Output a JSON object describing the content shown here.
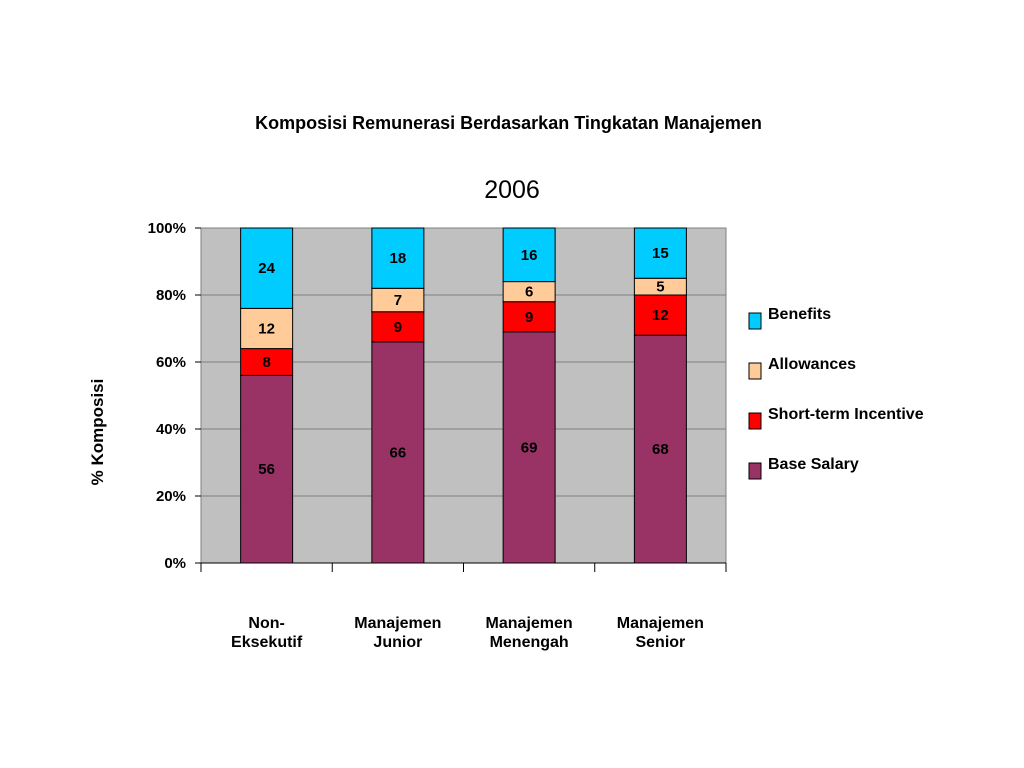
{
  "chart_data": {
    "type": "bar",
    "stacked": true,
    "percent_stacked": true,
    "title": "Komposisi Remunerasi Berdasarkan Tingkatan Manajemen",
    "subtitle": "2006",
    "ylabel": "% Komposisi",
    "xlabel": "",
    "ylim": [
      0,
      100
    ],
    "yticks": [
      "0%",
      "20%",
      "40%",
      "60%",
      "80%",
      "100%"
    ],
    "categories": [
      [
        "Non-",
        "Eksekutif"
      ],
      [
        "Manajemen",
        "Junior"
      ],
      [
        "Manajemen",
        "Menengah"
      ],
      [
        "Manajemen",
        "Senior"
      ]
    ],
    "series": [
      {
        "name": "Base Salary",
        "color": "#993366",
        "values": [
          56,
          66,
          69,
          68
        ]
      },
      {
        "name": "Short-term Incentive",
        "color": "#ff0000",
        "values": [
          8,
          9,
          9,
          12
        ]
      },
      {
        "name": "Allowances",
        "color": "#ffcc99",
        "values": [
          12,
          7,
          6,
          5
        ]
      },
      {
        "name": "Benefits",
        "color": "#00ccff",
        "values": [
          24,
          18,
          16,
          15
        ]
      }
    ],
    "legend_order": [
      "Benefits",
      "Allowances",
      "Short-term Incentive",
      "Base Salary"
    ],
    "legend_position": "right",
    "grid": true,
    "plot_background": "#c0c0c0"
  }
}
